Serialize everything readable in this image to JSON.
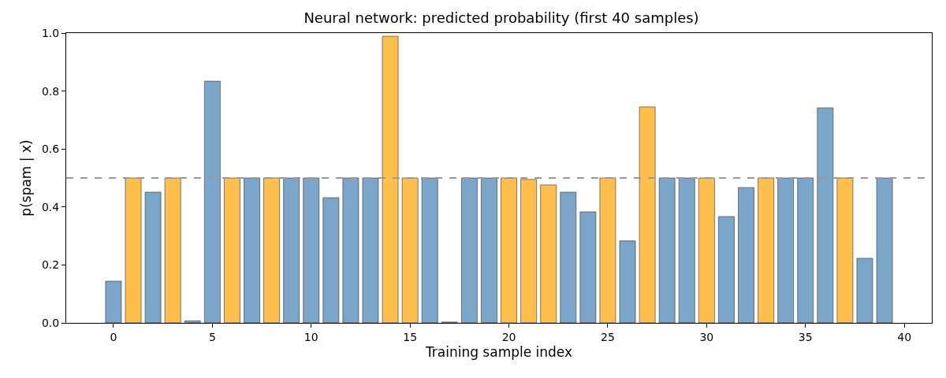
{
  "chart_data": {
    "type": "bar",
    "title": "Neural network: predicted probability (first 40 samples)",
    "xlabel": "Training sample index",
    "ylabel": "p(spam | x)",
    "x": [
      0,
      1,
      2,
      3,
      4,
      5,
      6,
      7,
      8,
      9,
      10,
      11,
      12,
      13,
      14,
      15,
      16,
      17,
      18,
      19,
      20,
      21,
      22,
      23,
      24,
      25,
      26,
      27,
      28,
      29,
      30,
      31,
      32,
      33,
      34,
      35,
      36,
      37,
      38,
      39
    ],
    "values": [
      0.144,
      0.5,
      0.451,
      0.5,
      0.007,
      0.834,
      0.5,
      0.5,
      0.5,
      0.5,
      0.5,
      0.432,
      0.5,
      0.5,
      0.989,
      0.5,
      0.5,
      0.003,
      0.5,
      0.5,
      0.5,
      0.495,
      0.476,
      0.451,
      0.383,
      0.5,
      0.283,
      0.745,
      0.5,
      0.5,
      0.5,
      0.367,
      0.467,
      0.5,
      0.5,
      0.5,
      0.742,
      0.5,
      0.223,
      0.5
    ],
    "colors": [
      "#7ba6ca",
      "#ffbf4d",
      "#7ba6ca",
      "#ffbf4d",
      "#7ba6ca",
      "#7ba6ca",
      "#ffbf4d",
      "#7ba6ca",
      "#ffbf4d",
      "#7ba6ca",
      "#7ba6ca",
      "#7ba6ca",
      "#7ba6ca",
      "#7ba6ca",
      "#ffbf4d",
      "#ffbf4d",
      "#7ba6ca",
      "#7ba6ca",
      "#7ba6ca",
      "#7ba6ca",
      "#ffbf4d",
      "#ffbf4d",
      "#ffbf4d",
      "#7ba6ca",
      "#7ba6ca",
      "#ffbf4d",
      "#7ba6ca",
      "#ffbf4d",
      "#7ba6ca",
      "#7ba6ca",
      "#ffbf4d",
      "#7ba6ca",
      "#7ba6ca",
      "#ffbf4d",
      "#7ba6ca",
      "#7ba6ca",
      "#7ba6ca",
      "#ffbf4d",
      "#7ba6ca",
      "#7ba6ca"
    ],
    "xlim": [
      -2.39,
      41.39
    ],
    "xticks": [
      0,
      5,
      10,
      15,
      20,
      25,
      30,
      35,
      40
    ],
    "ylim": [
      0,
      1
    ],
    "yticks": [
      {
        "value": 0,
        "label": "0.0"
      },
      {
        "value": 0.2,
        "label": "0.2"
      },
      {
        "value": 0.4,
        "label": "0.4"
      },
      {
        "value": 0.6,
        "label": "0.6"
      },
      {
        "value": 0.8,
        "label": "0.8"
      },
      {
        "value": 1,
        "label": "1.0"
      }
    ],
    "ref_lines": [
      {
        "axis": "y",
        "value": 0.5,
        "label": null,
        "color": "#999999",
        "line_style": "dashed"
      }
    ]
  }
}
